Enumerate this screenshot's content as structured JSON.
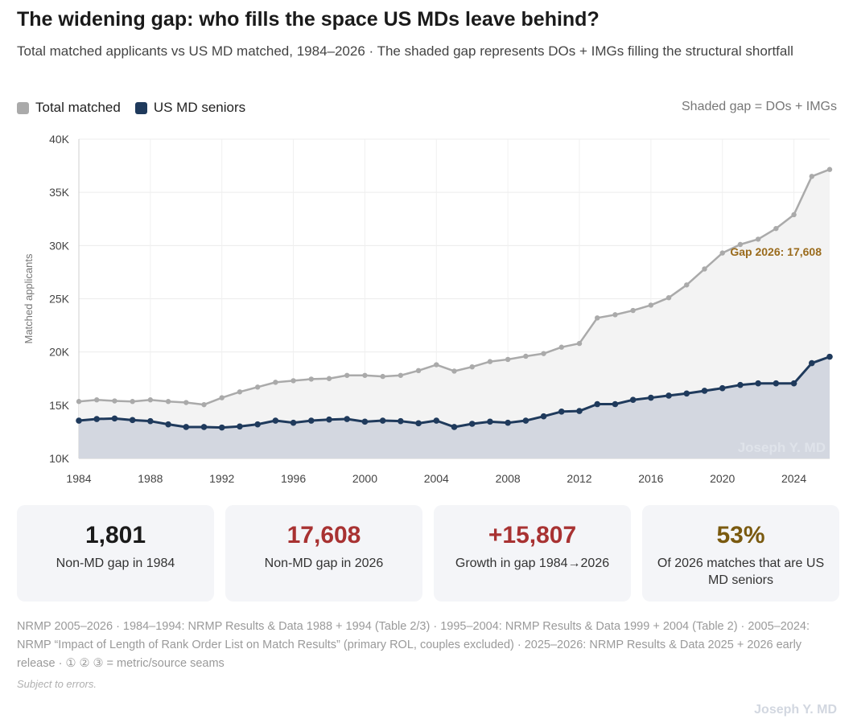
{
  "header": {
    "title": "The widening gap: who fills the space US MDs leave behind?",
    "subtitle": "Total matched applicants vs US MD matched, 1984–2026 · The shaded gap represents DOs + IMGs filling the structural shortfall"
  },
  "legend": {
    "items": [
      {
        "label": "Total matched",
        "color": "#aaaaaa"
      },
      {
        "label": "US MD seniors",
        "color": "#1f3a5c"
      }
    ],
    "note": "Shaded gap = DOs + IMGs"
  },
  "colors": {
    "total_line": "#aaaaaa",
    "md_line": "#1f3a5c",
    "gap_fill": "#f3f3f3",
    "md_fill": "#d3d7e0",
    "annotation": "#9a6b1c"
  },
  "chart_data": {
    "type": "area",
    "title": "The widening gap: who fills the space US MDs leave behind?",
    "ylabel": "Matched applicants",
    "xlabel": "",
    "ylim": [
      10000,
      40000
    ],
    "y_ticks": [
      10000,
      15000,
      20000,
      25000,
      30000,
      35000,
      40000
    ],
    "y_tick_labels": [
      "10K",
      "15K",
      "20K",
      "25K",
      "30K",
      "35K",
      "40K"
    ],
    "x_ticks": [
      1984,
      1988,
      1992,
      1996,
      2000,
      2004,
      2008,
      2012,
      2016,
      2020,
      2024
    ],
    "x_tick_labels": [
      "1984",
      "1988",
      "1992",
      "1996",
      "2000",
      "2004",
      "2008",
      "2012",
      "2016",
      "2020",
      "2024"
    ],
    "x": [
      1984,
      1985,
      1986,
      1987,
      1988,
      1989,
      1990,
      1991,
      1992,
      1993,
      1994,
      1995,
      1996,
      1997,
      1998,
      1999,
      2000,
      2001,
      2002,
      2003,
      2004,
      2005,
      2006,
      2007,
      2008,
      2009,
      2010,
      2011,
      2012,
      2013,
      2014,
      2015,
      2016,
      2017,
      2018,
      2019,
      2020,
      2021,
      2022,
      2023,
      2024,
      2025,
      2026
    ],
    "series": [
      {
        "name": "Total matched",
        "values": [
          15350,
          15500,
          15400,
          15350,
          15500,
          15350,
          15250,
          15050,
          15700,
          16250,
          16700,
          17150,
          17300,
          17450,
          17500,
          17800,
          17800,
          17700,
          17800,
          18250,
          18800,
          18200,
          18600,
          19100,
          19300,
          19600,
          19850,
          20450,
          20800,
          23200,
          23500,
          23900,
          24400,
          25100,
          26300,
          27800,
          29300,
          30100,
          30600,
          31600,
          32900,
          36500,
          37150
        ]
      },
      {
        "name": "US MD seniors",
        "values": [
          13550,
          13700,
          13750,
          13600,
          13500,
          13200,
          12950,
          12950,
          12900,
          13000,
          13200,
          13550,
          13350,
          13550,
          13650,
          13700,
          13450,
          13550,
          13500,
          13300,
          13550,
          12950,
          13250,
          13450,
          13350,
          13550,
          13950,
          14400,
          14450,
          15100,
          15100,
          15500,
          15700,
          15900,
          16100,
          16350,
          16600,
          16900,
          17050,
          17050,
          17050,
          18950,
          19550
        ]
      }
    ],
    "annotation": "Gap 2026: 17,608",
    "watermark": "Joseph Y. MD"
  },
  "cards": [
    {
      "value": "1,801",
      "label": "Non-MD gap in 1984",
      "color": "#1a1a1a"
    },
    {
      "value": "17,608",
      "label": "Non-MD gap in 2026",
      "color": "#a83232"
    },
    {
      "value": "+15,807",
      "label": "Growth in gap 1984→2026",
      "color": "#a83232"
    },
    {
      "value": "53%",
      "label": "Of 2026 matches that are US MD seniors",
      "color": "#7a5a10"
    }
  ],
  "footer": {
    "source": "NRMP 2005–2026 · 1984–1994: NRMP Results & Data 1988 + 1994 (Table 2/3) · 1995–2004: NRMP Results & Data 1999 + 2004 (Table 2) · 2005–2024: NRMP “Impact of Length of Rank Order List on Match Results” (primary ROL, couples excluded) · 2025–2026: NRMP Results & Data 2025 + 2026 early release · ① ② ③ = metric/source seams",
    "disclaimer": "Subject to errors.",
    "watermark": "Joseph Y. MD"
  }
}
